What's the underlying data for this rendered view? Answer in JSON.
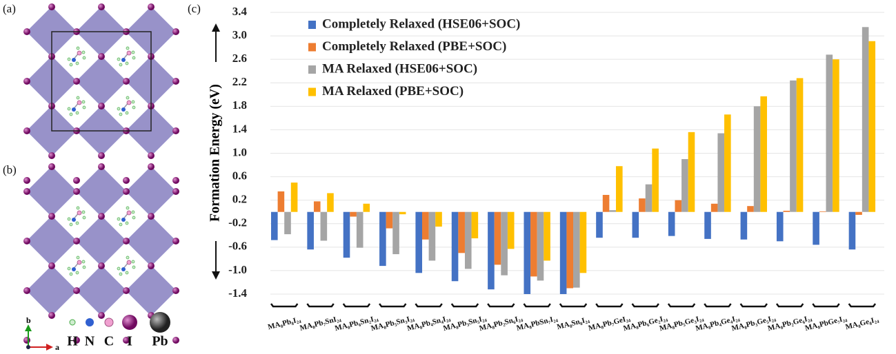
{
  "figure": {
    "panel_labels": [
      "(a)",
      "(b)",
      "(c)"
    ],
    "axis_labels": [
      "b",
      "a"
    ],
    "atoms": [
      "H",
      "N",
      "C",
      "I",
      "Pb"
    ]
  },
  "chart_data": {
    "type": "bar",
    "ylabel": "Formation Energy (eV)",
    "categories": [
      "MA₈Pb₈I₂₄",
      "MA₈Pb₇SnI₂₄",
      "MA₈Pb₆Sn₂I₂₄",
      "MA₈Pb₅Sn₃I₂₄",
      "MA₈Pb₄Sn₄I₂₄",
      "MA₈Pb₃Sn₅I₂₄",
      "MA₈Pb₂Sn₆I₂₄",
      "MA₈PbSn₇I₂₄",
      "MA₈Sn₈I₂₄",
      "MA₈Pb₇GeI₂₄",
      "MA₈Pb₆Ge₂I₂₄",
      "MA₈Pb₅Ge₃I₂₄",
      "MA₈Pb₄Ge₄I₂₄",
      "MA₈Pb₃Ge₅I₂₄",
      "MA₈Pb₂Ge₆I₂₄",
      "MA₈PbGe₇I₂₄",
      "MA₈Ge₈I₂₄"
    ],
    "series": [
      {
        "name": "Completely Relaxed (HSE06+SOC)",
        "color": "#4472c4",
        "values": [
          -0.48,
          -0.64,
          -0.78,
          -0.92,
          -1.04,
          -1.18,
          -1.32,
          -1.4,
          -1.4,
          -0.44,
          -0.44,
          -0.41,
          -0.46,
          -0.47,
          -0.5,
          -0.56,
          -0.64
        ]
      },
      {
        "name": "Completely Relaxed (PBE+SOC)",
        "color": "#ed7d31",
        "values": [
          0.35,
          0.18,
          -0.08,
          -0.28,
          -0.47,
          -0.7,
          -0.9,
          -1.1,
          -1.3,
          0.29,
          0.23,
          0.2,
          0.14,
          0.1,
          0.02,
          0.01,
          -0.05
        ]
      },
      {
        "name": "MA Relaxed (HSE06+SOC)",
        "color": "#a5a5a5",
        "values": [
          -0.38,
          -0.49,
          -0.61,
          -0.72,
          -0.83,
          -0.97,
          -1.08,
          -1.17,
          -1.29,
          0.03,
          0.47,
          0.9,
          1.34,
          1.8,
          2.24,
          2.68,
          3.15
        ]
      },
      {
        "name": "MA Relaxed (PBE+SOC)",
        "color": "#ffc000",
        "values": [
          0.5,
          0.32,
          0.14,
          -0.04,
          -0.25,
          -0.45,
          -0.63,
          -0.83,
          -1.04,
          0.78,
          1.08,
          1.36,
          1.66,
          1.97,
          2.28,
          2.6,
          2.91
        ]
      }
    ],
    "ylim": [
      -1.4,
      3.4
    ],
    "yticks": [
      3.4,
      {
        "value": 3.0,
        "label": "3.0"
      },
      2.6,
      2.2,
      1.8,
      1.4,
      {
        "value": 1.0,
        "label": "1.0"
      },
      0.6,
      0.2,
      -0.2,
      -0.6,
      {
        "value": -1.0,
        "label": "-1.0"
      },
      -1.4
    ],
    "grid": true,
    "legend": "upper left"
  }
}
